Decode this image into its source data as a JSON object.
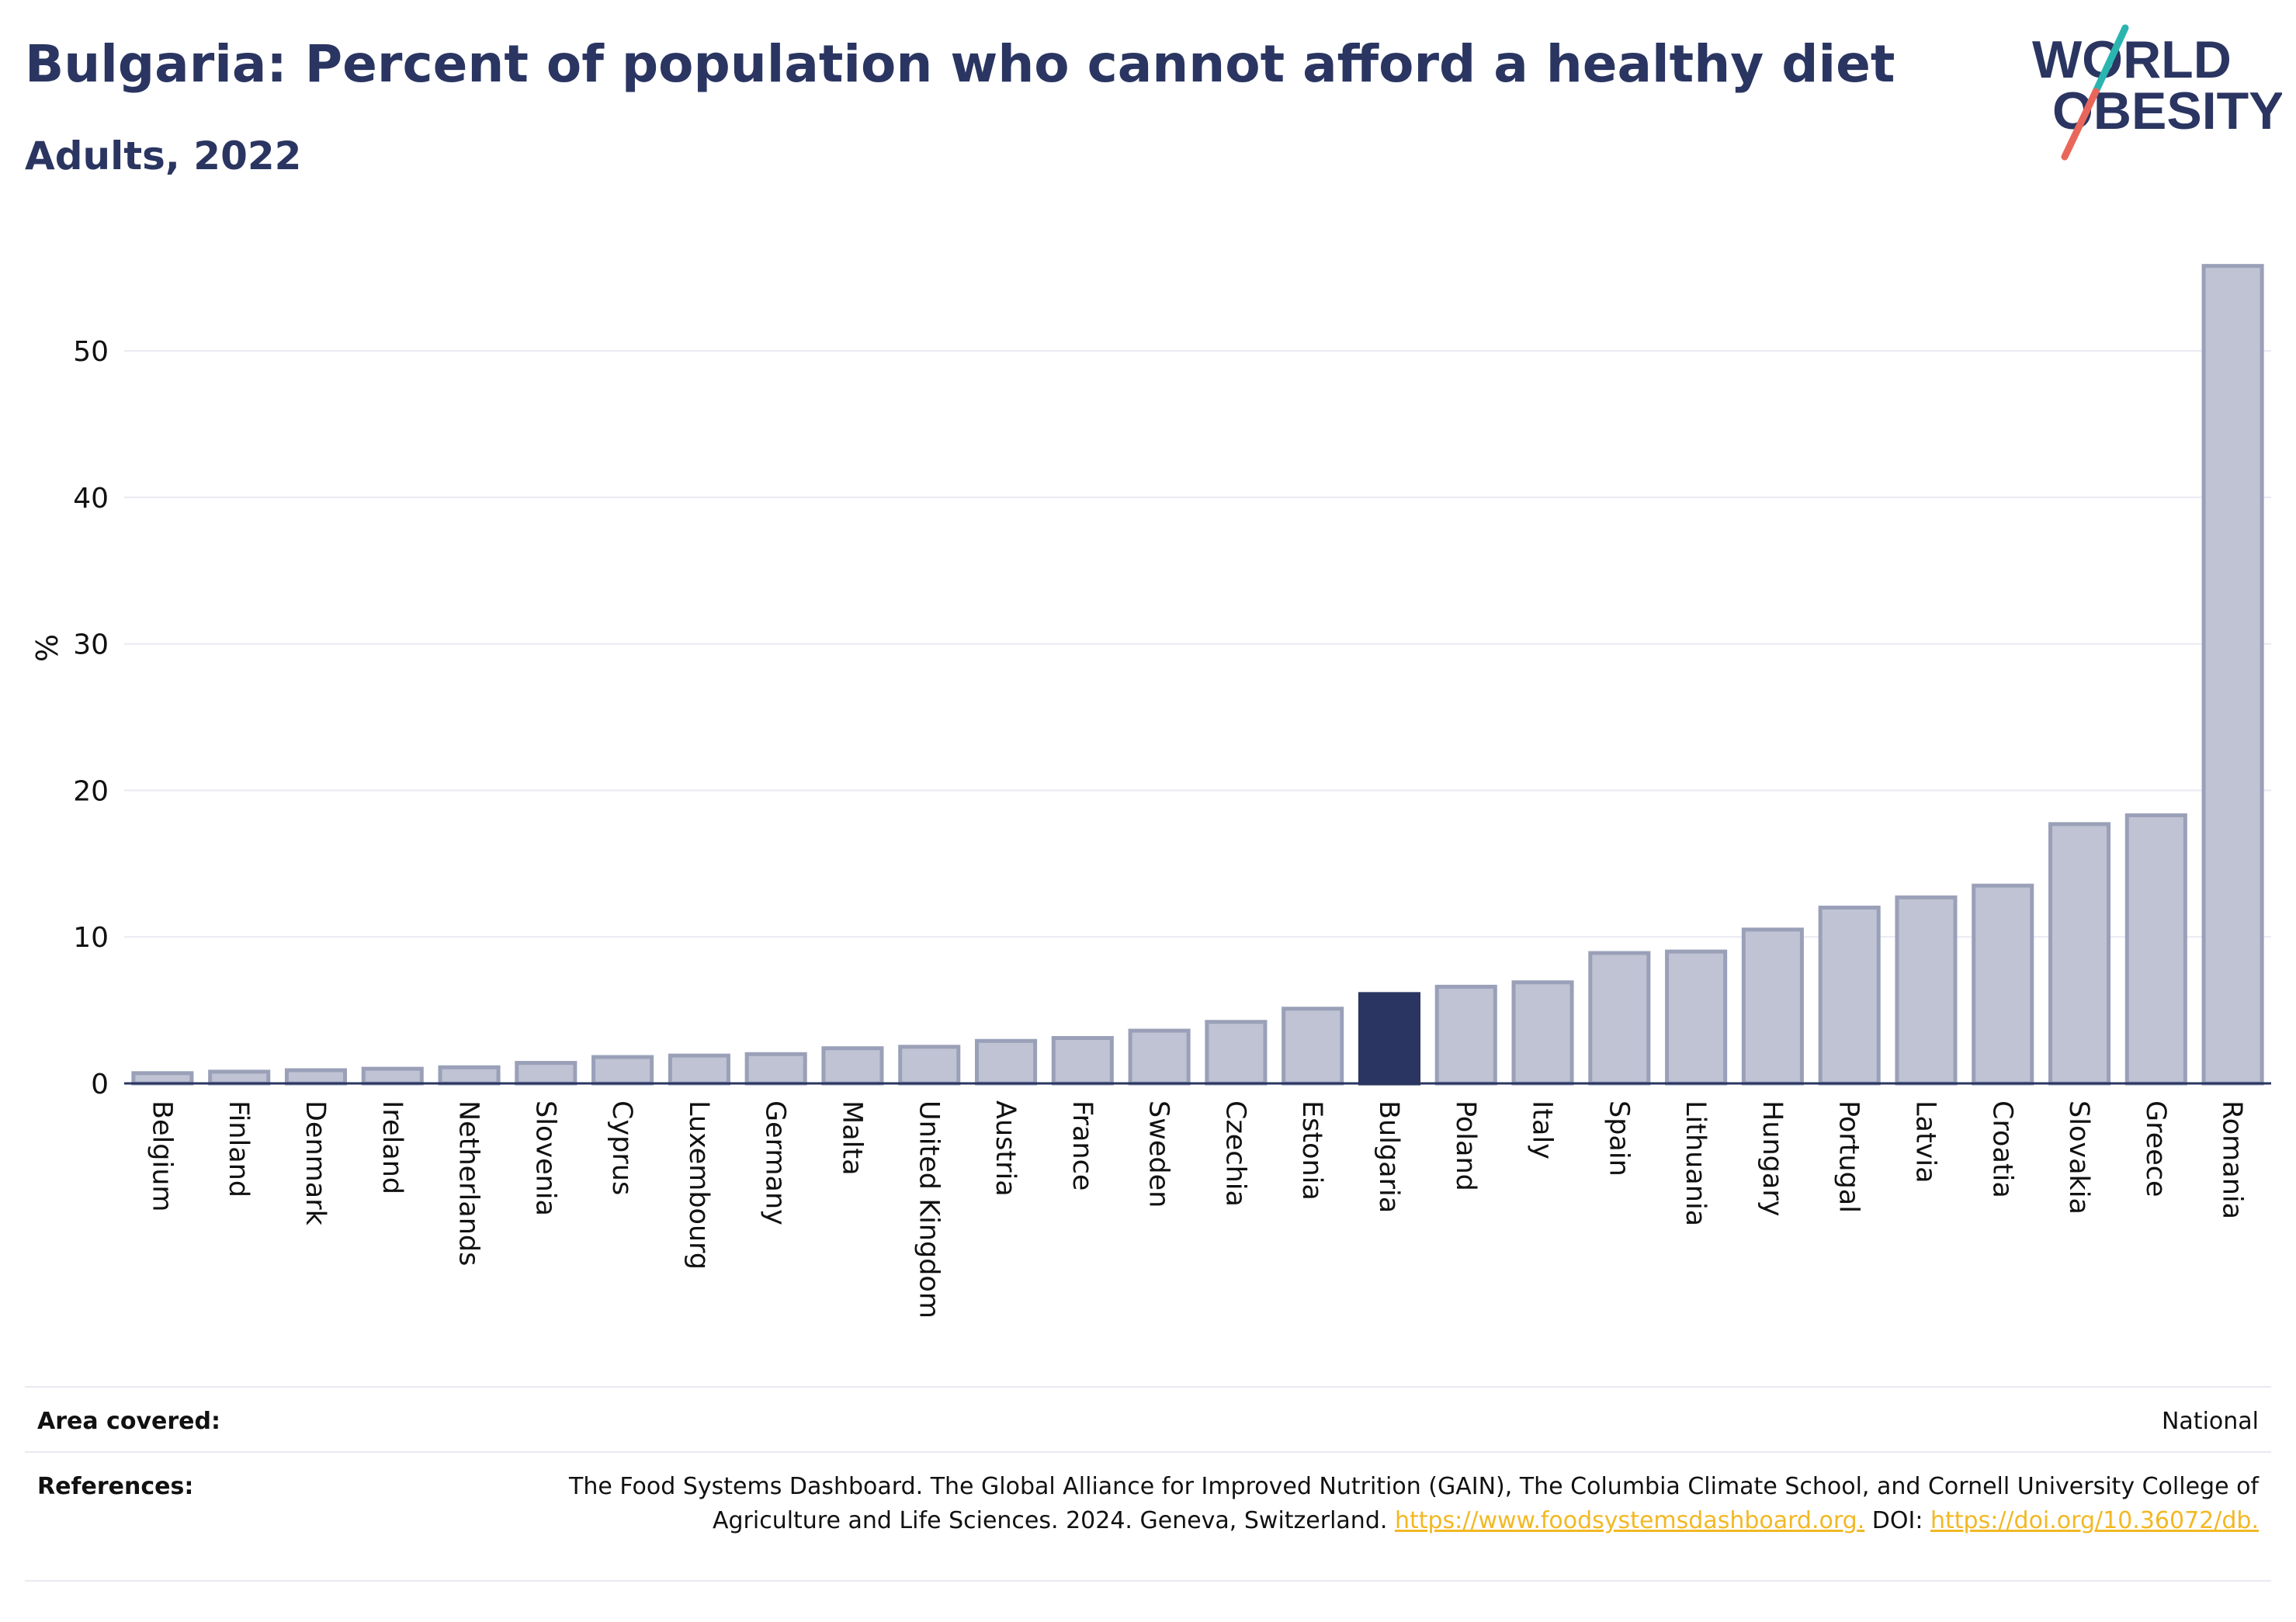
{
  "header": {
    "title": "Bulgaria: Percent of population who cannot afford a healthy diet",
    "subtitle": "Adults, 2022"
  },
  "logo": {
    "line1": "WORLD",
    "line2": "OBESITY",
    "colors": {
      "text": "#2a3561",
      "slash_teal": "#2bb5b0",
      "slash_coral": "#e8675a"
    }
  },
  "chart_data": {
    "type": "bar",
    "ylabel": "%",
    "ylim": [
      0,
      57
    ],
    "yticks": [
      0,
      10,
      20,
      30,
      40,
      50
    ],
    "grid": true,
    "highlight": "Bulgaria",
    "colors": {
      "bar": "#bfc3d3",
      "bar_edge": "#9aa0b8",
      "highlight": "#2a3561",
      "axis": "#2a3561",
      "grid": "#e8eaf2"
    },
    "categories": [
      "Belgium",
      "Finland",
      "Denmark",
      "Ireland",
      "Netherlands",
      "Slovenia",
      "Cyprus",
      "Luxembourg",
      "Germany",
      "Malta",
      "United Kingdom",
      "Austria",
      "France",
      "Sweden",
      "Czechia",
      "Estonia",
      "Bulgaria",
      "Poland",
      "Italy",
      "Spain",
      "Lithuania",
      "Hungary",
      "Portugal",
      "Latvia",
      "Croatia",
      "Slovakia",
      "Greece",
      "Romania"
    ],
    "values": [
      0.7,
      0.8,
      0.9,
      1.0,
      1.1,
      1.4,
      1.8,
      1.9,
      2.0,
      2.4,
      2.5,
      2.9,
      3.1,
      3.6,
      4.2,
      5.1,
      6.1,
      6.6,
      6.9,
      8.9,
      9.0,
      10.5,
      12.0,
      12.7,
      13.5,
      17.7,
      18.3,
      55.8
    ]
  },
  "footer": {
    "area_label": "Area covered:",
    "area_value": "National",
    "references_label": "References:",
    "references_text": "The Food Systems Dashboard. The Global Alliance for Improved Nutrition (GAIN), The Columbia Climate School, and Cornell University College of Agriculture and Life Sciences. 2024. Geneva, Switzerland. ",
    "references_link1": "https://www.foodsystemsdashboard.org.",
    "references_doi_label": " DOI: ",
    "references_link2": "https://doi.org/10.36072/db."
  }
}
